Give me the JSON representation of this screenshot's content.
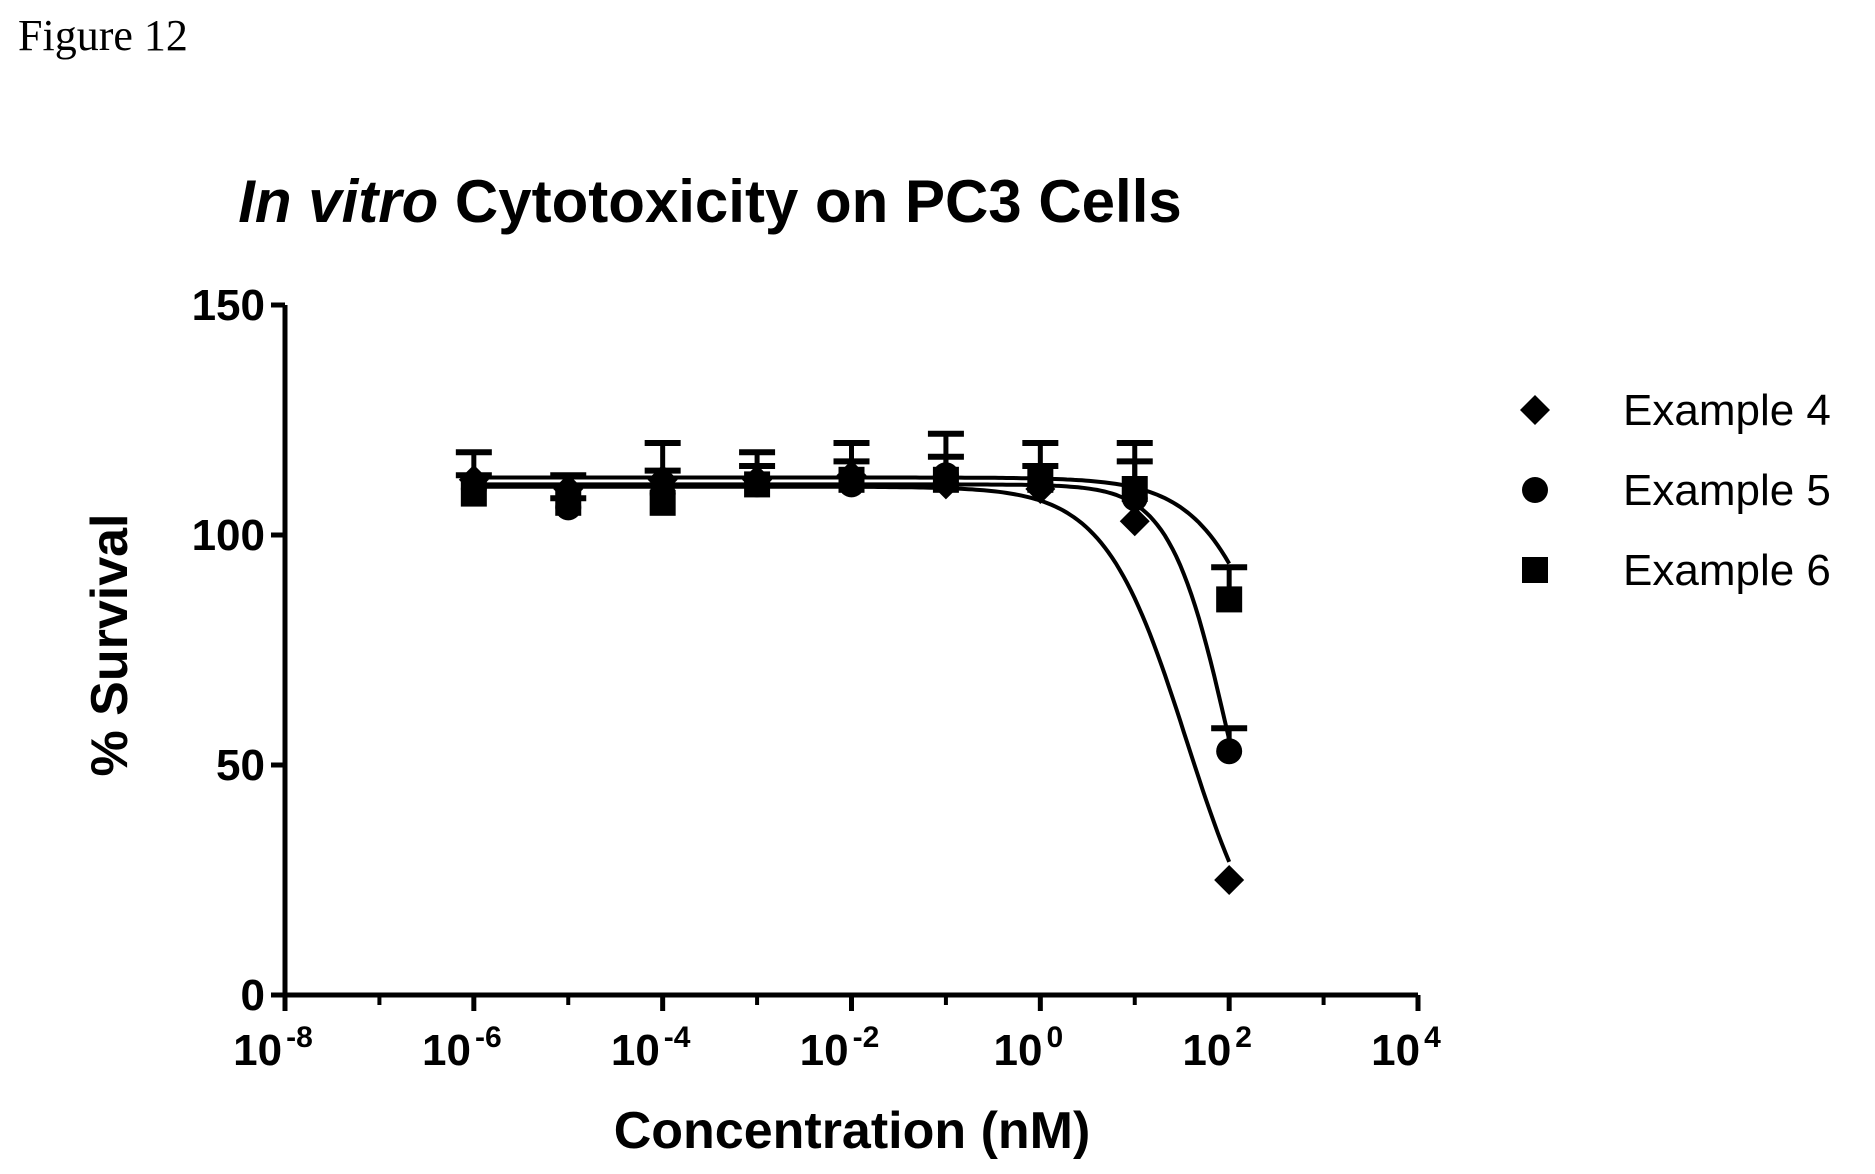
{
  "figure_label": "Figure 12",
  "chart_data": {
    "type": "scatter",
    "title": {
      "italic": "In vitro",
      "rest": "Cytotoxicity on PC3 Cells"
    },
    "xlabel": "Concentration (nM)",
    "ylabel": "% Survival",
    "xscale": "log",
    "xlim": [
      1e-08,
      10000.0
    ],
    "ylim": [
      0,
      150
    ],
    "x_ticks": [
      {
        "base": "10",
        "exp": "-8",
        "value": 1e-08
      },
      {
        "base": "10",
        "exp": "-6",
        "value": 1e-06
      },
      {
        "base": "10",
        "exp": "-4",
        "value": 0.0001
      },
      {
        "base": "10",
        "exp": "-2",
        "value": 0.01
      },
      {
        "base": "10",
        "exp": "0",
        "value": 1
      },
      {
        "base": "10",
        "exp": "2",
        "value": 100
      },
      {
        "base": "10",
        "exp": "4",
        "value": 10000
      }
    ],
    "y_ticks": [
      0,
      50,
      100,
      150
    ],
    "grid": false,
    "legend_position": "right",
    "x": [
      1e-06,
      1e-05,
      0.0001,
      0.001,
      0.01,
      0.1,
      1,
      10,
      100
    ],
    "series": [
      {
        "name": "Example 4",
        "marker": "diamond",
        "values": [
          112,
          110,
          112,
          112,
          113,
          111,
          110,
          103,
          25
        ],
        "errors": [
          0,
          0,
          0,
          0,
          0,
          0,
          0,
          0,
          0
        ],
        "fit": {
          "top": 110.5,
          "bottom": 0,
          "log_ic50": 1.55,
          "hill": 1.0
        }
      },
      {
        "name": "Example 5",
        "marker": "circle",
        "values": [
          110,
          106,
          109,
          111,
          111,
          113,
          111,
          108,
          53
        ],
        "errors": [
          3,
          2,
          5,
          4,
          5,
          4,
          4,
          8,
          5
        ],
        "fit": {
          "top": 111,
          "bottom": 0,
          "log_ic50": 2.0,
          "hill": 1.4
        }
      },
      {
        "name": "Example 6",
        "marker": "square",
        "values": [
          109,
          107,
          107,
          111,
          112,
          112,
          112,
          110,
          86
        ],
        "errors": [
          9,
          6,
          13,
          7,
          8,
          10,
          8,
          10,
          7
        ],
        "fit": {
          "top": 112.5,
          "bottom": 0,
          "log_ic50": 2.7,
          "hill": 1.0
        }
      }
    ]
  }
}
